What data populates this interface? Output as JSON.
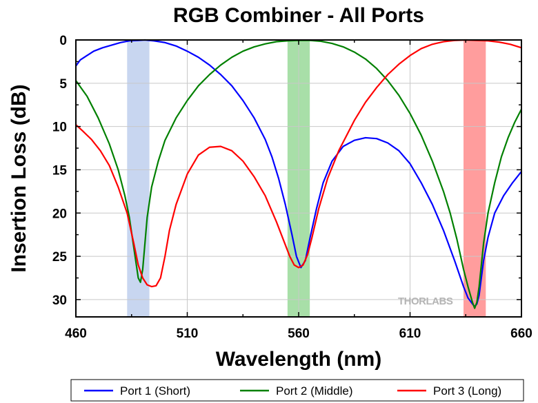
{
  "chart_data": {
    "type": "line",
    "title": "RGB Combiner - All Ports",
    "xlabel": "Wavelength (nm)",
    "ylabel": "Insertion Loss (dB)",
    "xlim": [
      460,
      660
    ],
    "ylim": [
      0,
      32
    ],
    "y_inverted": true,
    "x_ticks": [
      460,
      510,
      560,
      610,
      660
    ],
    "y_ticks": [
      0,
      5,
      10,
      15,
      20,
      25,
      30
    ],
    "grid": true,
    "legend_position": "bottom",
    "watermark": "THORLABS",
    "bands": [
      {
        "name": "blue",
        "x_range": [
          483,
          493
        ],
        "color": "#c8d6f0"
      },
      {
        "name": "green",
        "x_range": [
          555,
          565
        ],
        "color": "#a8dfa8"
      },
      {
        "name": "red",
        "x_range": [
          634,
          644
        ],
        "color": "#ff9d9d"
      }
    ],
    "series": [
      {
        "name": "Port 1 (Short)",
        "color": "#0000ff",
        "x": [
          460,
          462,
          465,
          468,
          472,
          476,
          480,
          484,
          488,
          491,
          495,
          500,
          505,
          510,
          515,
          520,
          525,
          530,
          535,
          540,
          545,
          548,
          551,
          554,
          557,
          559,
          561,
          563,
          565,
          568,
          571,
          575,
          580,
          585,
          590,
          595,
          600,
          605,
          610,
          615,
          620,
          625,
          630,
          634,
          636,
          638,
          639,
          640,
          641,
          642,
          643,
          645,
          648,
          652,
          656,
          660
        ],
        "y": [
          3.0,
          2.3,
          1.8,
          1.3,
          0.9,
          0.6,
          0.3,
          0.1,
          0.05,
          0.0,
          0.1,
          0.3,
          0.7,
          1.3,
          2.0,
          2.9,
          4.0,
          5.3,
          7.0,
          9.0,
          11.5,
          13.5,
          16.0,
          19.0,
          22.5,
          25.0,
          26.3,
          25.5,
          23.0,
          19.5,
          16.5,
          14.0,
          12.3,
          11.6,
          11.3,
          11.4,
          11.9,
          12.8,
          14.3,
          16.5,
          19.0,
          22.0,
          25.5,
          28.5,
          29.8,
          30.5,
          30.8,
          30.5,
          29.5,
          27.5,
          25.5,
          22.8,
          20.0,
          18.0,
          16.5,
          15.2
        ]
      },
      {
        "name": "Port 2 (Middle)",
        "color": "#008000",
        "x": [
          460,
          465,
          470,
          475,
          479,
          482,
          484,
          486,
          488,
          489,
          490,
          491,
          492,
          494,
          497,
          500,
          505,
          510,
          515,
          520,
          525,
          530,
          535,
          540,
          545,
          550,
          555,
          560,
          565,
          570,
          575,
          580,
          585,
          590,
          595,
          600,
          605,
          610,
          615,
          620,
          625,
          628,
          631,
          634,
          636,
          638,
          639,
          640,
          641,
          642,
          643,
          645,
          648,
          651,
          654,
          657,
          660
        ],
        "y": [
          4.7,
          6.5,
          9.0,
          12.0,
          15.0,
          18.0,
          20.5,
          24.0,
          27.5,
          28.0,
          26.5,
          23.5,
          20.5,
          17.0,
          14.0,
          11.6,
          9.0,
          7.0,
          5.3,
          4.0,
          2.9,
          2.0,
          1.3,
          0.8,
          0.45,
          0.2,
          0.1,
          0.05,
          0.05,
          0.15,
          0.4,
          0.8,
          1.4,
          2.2,
          3.3,
          4.7,
          6.4,
          8.5,
          11.0,
          14.0,
          17.5,
          20.0,
          23.0,
          26.5,
          28.5,
          30.3,
          31.0,
          30.3,
          28.5,
          26.0,
          23.5,
          20.0,
          16.5,
          13.5,
          11.3,
          9.5,
          8.0
        ]
      },
      {
        "name": "Port 3 (Long)",
        "color": "#ff0000",
        "x": [
          460,
          463,
          467,
          471,
          475,
          479,
          483,
          486,
          488,
          490,
          492,
          494,
          496,
          498,
          500,
          502,
          505,
          510,
          515,
          520,
          525,
          530,
          535,
          540,
          545,
          550,
          553,
          556,
          558,
          560,
          562,
          564,
          566,
          569,
          573,
          578,
          585,
          590,
          595,
          600,
          605,
          610,
          615,
          620,
          625,
          630,
          635,
          640,
          645,
          650,
          655,
          660
        ],
        "y": [
          9.8,
          10.5,
          11.5,
          12.8,
          14.5,
          17.0,
          20.0,
          23.5,
          26.0,
          27.5,
          28.3,
          28.5,
          28.4,
          27.5,
          25.0,
          22.0,
          19.0,
          15.5,
          13.3,
          12.4,
          12.3,
          12.8,
          14.0,
          15.8,
          18.0,
          21.0,
          23.0,
          25.0,
          26.0,
          26.3,
          26.0,
          24.8,
          22.8,
          19.5,
          16.0,
          12.8,
          9.3,
          7.2,
          5.5,
          4.0,
          2.8,
          1.8,
          1.0,
          0.5,
          0.2,
          0.05,
          0.0,
          0.05,
          0.1,
          0.25,
          0.5,
          0.9
        ]
      }
    ]
  }
}
